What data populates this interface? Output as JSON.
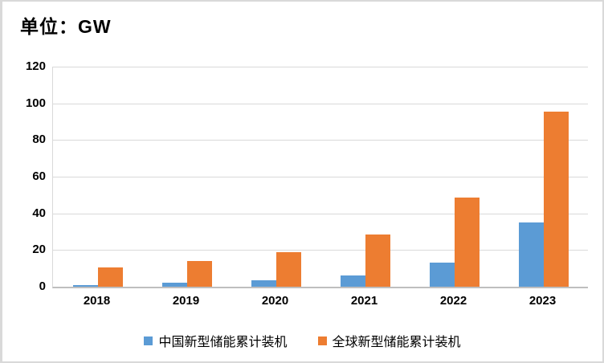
{
  "page": {
    "background_color": "#FFFFFF",
    "frame_border_color": "#D9D9D9"
  },
  "chart_data": {
    "type": "bar",
    "title": "单位：GW",
    "unit": "GW",
    "categories": [
      "2018",
      "2019",
      "2020",
      "2021",
      "2022",
      "2023"
    ],
    "series": [
      {
        "key": "china",
        "name": "中国新型储能累计装机",
        "color": "#5B9BD5",
        "values": [
          1.1,
          2.1,
          3.4,
          6,
          13.1,
          35
        ]
      },
      {
        "key": "global",
        "name": "全球新型储能累计装机",
        "color": "#ED7D31",
        "values": [
          10.4,
          13.9,
          18.7,
          28.6,
          48.6,
          95.4
        ]
      }
    ],
    "xlabel": "",
    "ylabel": "",
    "ylim": [
      0,
      120
    ],
    "ytick_step": 20,
    "yticks": [
      0,
      20,
      40,
      60,
      80,
      100,
      120
    ],
    "grid": true,
    "gridline_color": "#D9D9D9",
    "axis_line_color": "#BFBFBF",
    "text_color": "#000000",
    "legend_position": "bottom"
  }
}
